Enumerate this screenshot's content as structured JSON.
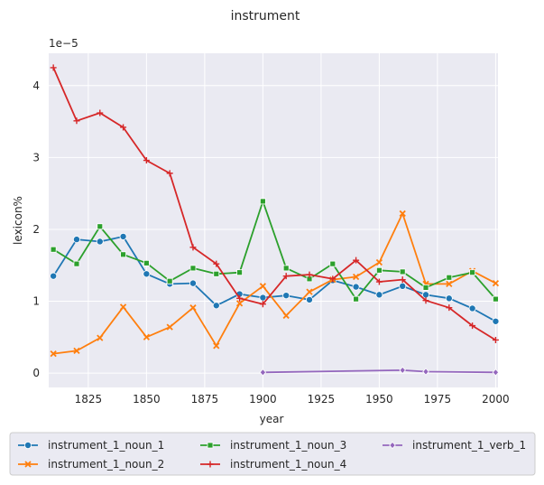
{
  "chart_data": {
    "type": "line",
    "title": "instrument",
    "xlabel": "year",
    "ylabel": "lexicon%",
    "y_multiplier": "1e−5",
    "xlim": [
      1808,
      2001
    ],
    "ylim": [
      -0.2,
      4.45
    ],
    "x_ticks": [
      1825,
      1850,
      1875,
      1900,
      1925,
      1950,
      1975,
      2000
    ],
    "y_ticks": [
      0,
      1,
      2,
      3,
      4
    ],
    "grid": true,
    "legend_position": "bottom",
    "series": [
      {
        "name": "instrument_1_noun_1",
        "color": "#1f77b4",
        "marker": "circle",
        "x": [
          1810,
          1820,
          1830,
          1840,
          1850,
          1860,
          1870,
          1880,
          1890,
          1900,
          1910,
          1920,
          1930,
          1940,
          1950,
          1960,
          1970,
          1980,
          1990,
          2000
        ],
        "values": [
          1.35,
          1.86,
          1.83,
          1.9,
          1.38,
          1.24,
          1.25,
          0.94,
          1.1,
          1.05,
          1.08,
          1.02,
          1.29,
          1.2,
          1.09,
          1.21,
          1.09,
          1.04,
          0.9,
          0.72
        ]
      },
      {
        "name": "instrument_1_noun_2",
        "color": "#ff7f0e",
        "marker": "x",
        "x": [
          1810,
          1820,
          1830,
          1840,
          1850,
          1860,
          1870,
          1880,
          1890,
          1900,
          1910,
          1920,
          1930,
          1940,
          1950,
          1960,
          1970,
          1980,
          1990,
          2000
        ],
        "values": [
          0.27,
          0.31,
          0.49,
          0.92,
          0.5,
          0.64,
          0.91,
          0.38,
          0.97,
          1.21,
          0.8,
          1.13,
          1.3,
          1.34,
          1.54,
          2.22,
          1.24,
          1.24,
          1.42,
          1.25
        ]
      },
      {
        "name": "instrument_1_noun_3",
        "color": "#2ca02c",
        "marker": "square",
        "x": [
          1810,
          1820,
          1830,
          1840,
          1850,
          1860,
          1870,
          1880,
          1890,
          1900,
          1910,
          1920,
          1930,
          1940,
          1950,
          1960,
          1970,
          1980,
          1990,
          2000
        ],
        "values": [
          1.72,
          1.52,
          2.04,
          1.65,
          1.53,
          1.28,
          1.46,
          1.38,
          1.4,
          2.39,
          1.46,
          1.31,
          1.52,
          1.03,
          1.43,
          1.41,
          1.19,
          1.33,
          1.4,
          1.03
        ]
      },
      {
        "name": "instrument_1_noun_4",
        "color": "#d62728",
        "marker": "plus",
        "x": [
          1810,
          1820,
          1830,
          1840,
          1850,
          1860,
          1870,
          1880,
          1890,
          1900,
          1910,
          1920,
          1930,
          1940,
          1950,
          1960,
          1970,
          1980,
          1990,
          2000
        ],
        "values": [
          4.25,
          3.51,
          3.62,
          3.42,
          2.96,
          2.78,
          1.75,
          1.52,
          1.04,
          0.96,
          1.35,
          1.37,
          1.31,
          1.57,
          1.27,
          1.3,
          1.01,
          0.91,
          0.66,
          0.46
        ]
      },
      {
        "name": "instrument_1_verb_1",
        "color": "#9467bd",
        "marker": "diamond",
        "x": [
          1900,
          1960,
          1970,
          2000
        ],
        "values": [
          0.01,
          0.04,
          0.02,
          0.01
        ]
      }
    ]
  }
}
